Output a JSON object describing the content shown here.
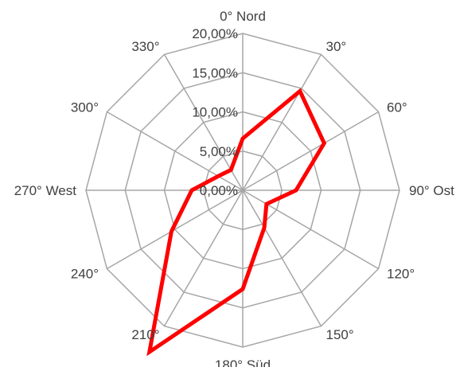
{
  "chart_data": {
    "type": "radar",
    "categories": [
      "0° Nord",
      "30°",
      "60°",
      "90° Ost",
      "120°",
      "150°",
      "180° Süd",
      "210°",
      "240°",
      "270° West",
      "300°",
      "330°"
    ],
    "series": [
      {
        "values": [
          6.6,
          14.6,
          12.0,
          6.8,
          3.5,
          5.5,
          12.6,
          23.8,
          10.5,
          6.5,
          3.6,
          3.0
        ],
        "color": "#ff0000"
      }
    ],
    "rmax": 20,
    "ticks": [
      "0,00%",
      "5,00%",
      "10,00%",
      "15,00%",
      "20,00%"
    ],
    "grid": true,
    "grid_color": "#a6a6a6",
    "text_color": "#404040"
  }
}
